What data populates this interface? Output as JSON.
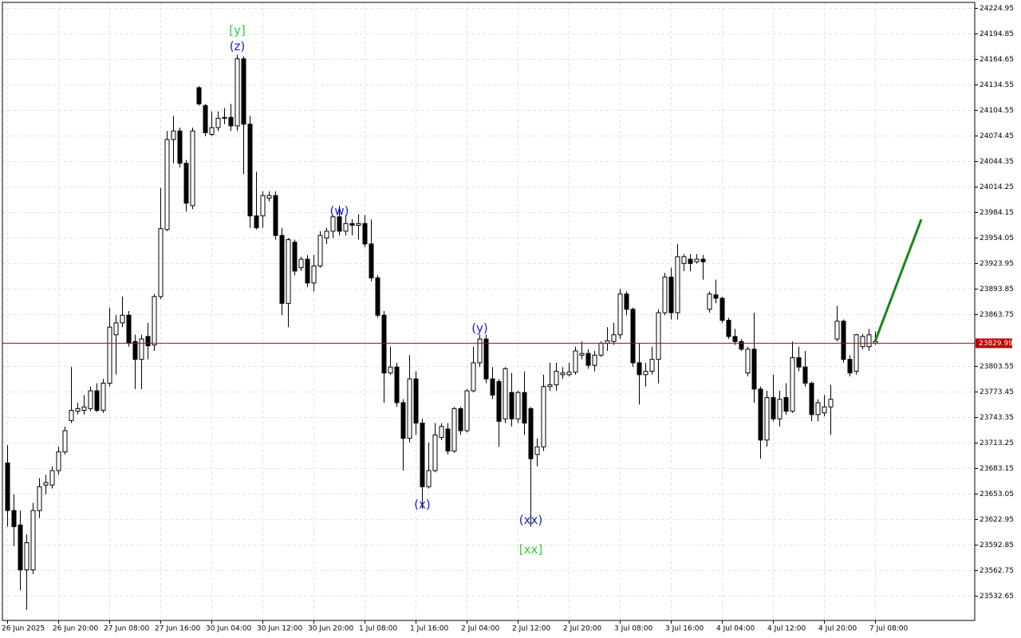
{
  "chart_data": {
    "type": "candlestick",
    "categories": [
      "26 Jun 2025",
      null,
      null,
      null,
      null,
      null,
      null,
      null,
      "26 Jun 20:00",
      null,
      null,
      null,
      null,
      null,
      null,
      null,
      "27 Jun 08:00",
      null,
      null,
      null,
      null,
      null,
      null,
      null,
      "27 Jun 16:00",
      null,
      null,
      null,
      null,
      null,
      null,
      null,
      "30 Jun 04:00",
      null,
      null,
      null,
      null,
      null,
      null,
      null,
      "30 Jun 12:00",
      null,
      null,
      null,
      null,
      null,
      null,
      null,
      "30 Jun 20:00",
      null,
      null,
      null,
      null,
      null,
      null,
      null,
      "1 Jul 08:00",
      null,
      null,
      null,
      null,
      null,
      null,
      null,
      "1 Jul 16:00",
      null,
      null,
      null,
      null,
      null,
      null,
      null,
      "2 Jul 04:00",
      null,
      null,
      null,
      null,
      null,
      null,
      null,
      "2 Jul 12:00",
      null,
      null,
      null,
      null,
      null,
      null,
      null,
      "2 Jul 20:00",
      null,
      null,
      null,
      null,
      null,
      null,
      null,
      "3 Jul 08:00",
      null,
      null,
      null,
      null,
      null,
      null,
      null,
      "3 Jul 16:00",
      null,
      null,
      null,
      null,
      null,
      null,
      null,
      "4 Jul 04:00",
      null,
      null,
      null,
      null,
      null,
      null,
      null,
      "4 Jul 12:00",
      null,
      null,
      null,
      null,
      null,
      null,
      null,
      "4 Jul 20:00",
      null,
      null,
      null,
      null,
      null,
      null,
      null,
      "7 Jul 08:00"
    ],
    "open": [
      23689,
      23633,
      23616,
      23563,
      23563,
      23633,
      23663,
      23663,
      23680,
      23702,
      23739,
      23750,
      23751,
      23753,
      23774,
      23751,
      23783,
      23840,
      23854,
      23863,
      23832,
      23811,
      23838,
      23828,
      23885,
      23964,
      24070,
      24080,
      24042,
      23992,
      24131,
      24110,
      24076,
      24084,
      24095,
      24096,
      24086,
      24165,
      24088,
      23980,
      23980,
      24001,
      24004,
      23957,
      23877,
      23949,
      23919,
      23929,
      23901,
      23921,
      23954,
      23962,
      23979,
      23962,
      23971,
      23969,
      23971,
      23947,
      23907,
      23863,
      23795,
      23802,
      23760,
      23718,
      23788,
      23736,
      23661,
      23680,
      23719,
      23729,
      23703,
      23753,
      23727,
      23774,
      23807,
      23835,
      23788,
      23785,
      23741,
      23772,
      23741,
      23772,
      23753,
      23699,
      23708,
      23779,
      23781,
      23793,
      23793,
      23796,
      23816,
      23818,
      23804,
      23816,
      23830,
      23832,
      23840,
      23888,
      23870,
      23807,
      23793,
      23797,
      23811,
      23866,
      23908,
      23866,
      23924,
      23929,
      23926,
      23929,
      23870,
      23887,
      23883,
      23857,
      23838,
      23832,
      23795,
      23823,
      23776,
      23716,
      23766,
      23741,
      23766,
      23750,
      23813,
      23802,
      23783,
      23746,
      23748,
      23755,
      23835,
      23856,
      23811,
      23797,
      23826,
      23826,
      23830
    ],
    "high": [
      23710,
      23652,
      23633,
      23605,
      23642,
      23671,
      23675,
      23685,
      23708,
      23732,
      23802,
      23760,
      23769,
      23779,
      23783,
      23788,
      23872,
      23863,
      23885,
      23868,
      23840,
      23840,
      23854,
      23888,
      24013,
      24080,
      24098,
      24084,
      24046,
      24084,
      24133,
      24112,
      24103,
      24103,
      24107,
      24112,
      24170,
      24168,
      24098,
      24032,
      24009,
      24009,
      24009,
      23966,
      23954,
      23952,
      23932,
      23934,
      23934,
      23962,
      23966,
      23981,
      23992,
      23981,
      23976,
      23982,
      23981,
      23976,
      23910,
      23868,
      23826,
      23807,
      23764,
      23816,
      23797,
      23741,
      23713,
      23736,
      23736,
      23736,
      23755,
      23755,
      23776,
      23826,
      23840,
      23840,
      23802,
      23788,
      23802,
      23795,
      23774,
      23797,
      23755,
      23718,
      23793,
      23807,
      23807,
      23802,
      23807,
      23826,
      23832,
      23823,
      23821,
      23832,
      23849,
      23854,
      23894,
      23891,
      23872,
      23830,
      23807,
      23826,
      23870,
      23913,
      23919,
      23947,
      23935,
      23935,
      23935,
      23934,
      23891,
      23905,
      23885,
      23860,
      23847,
      23835,
      23826,
      23866,
      23779,
      23774,
      23793,
      23774,
      23783,
      23832,
      23826,
      23821,
      23785,
      23764,
      23769,
      23781,
      23874,
      23858,
      23816,
      23841,
      23841,
      23847,
      23844
    ],
    "low": [
      23614,
      23591,
      23539,
      23516,
      23558,
      23624,
      23652,
      23659,
      23675,
      23699,
      23736,
      23746,
      23746,
      23750,
      23749,
      23748,
      23779,
      23793,
      23849,
      23826,
      23776,
      23776,
      23811,
      23821,
      23882,
      23962,
      24042,
      24037,
      23985,
      23988,
      24110,
      24074,
      24074,
      24080,
      24088,
      24080,
      24080,
      24029,
      23966,
      23964,
      23966,
      23997,
      23952,
      23863,
      23849,
      23910,
      23915,
      23896,
      23891,
      23919,
      23947,
      23954,
      23957,
      23957,
      23957,
      23952,
      23943,
      23903,
      23860,
      23760,
      23793,
      23755,
      23680,
      23713,
      23722,
      23635,
      23659,
      23678,
      23716,
      23699,
      23701,
      23722,
      23725,
      23772,
      23802,
      23783,
      23764,
      23708,
      23736,
      23732,
      23736,
      23722,
      23614,
      23685,
      23703,
      23774,
      23774,
      23788,
      23791,
      23793,
      23811,
      23800,
      23797,
      23814,
      23821,
      23828,
      23835,
      23863,
      23802,
      23758,
      23779,
      23793,
      23783,
      23863,
      23858,
      23858,
      23915,
      23915,
      23924,
      23905,
      23866,
      23877,
      23854,
      23835,
      23828,
      23821,
      23791,
      23760,
      23694,
      23708,
      23738,
      23732,
      23746,
      23748,
      23797,
      23779,
      23738,
      23738,
      23744,
      23722,
      23832,
      23807,
      23791,
      23793,
      23823,
      23821,
      23828
    ],
    "close": [
      23633,
      23614,
      23563,
      23595,
      23633,
      23661,
      23666,
      23680,
      23702,
      23727,
      23751,
      23753,
      23755,
      23774,
      23751,
      23783,
      23849,
      23854,
      23863,
      23830,
      23811,
      23835,
      23827,
      23885,
      23965,
      24070,
      24080,
      24042,
      23995,
      24080,
      24112,
      24078,
      24084,
      24095,
      24096,
      24086,
      24165,
      24088,
      23980,
      23966,
      24004,
      24004,
      23957,
      23877,
      23952,
      23915,
      23929,
      23901,
      23921,
      23957,
      23962,
      23979,
      23962,
      23971,
      23969,
      23971,
      23947,
      23907,
      23863,
      23795,
      23802,
      23760,
      23718,
      23788,
      23736,
      23661,
      23680,
      23722,
      23732,
      23703,
      23753,
      23727,
      23774,
      23807,
      23835,
      23788,
      23769,
      23738,
      23800,
      23741,
      23772,
      23736,
      23694,
      23708,
      23779,
      23781,
      23797,
      23795,
      23796,
      23821,
      23818,
      23804,
      23816,
      23830,
      23833,
      23840,
      23888,
      23870,
      23807,
      23793,
      23797,
      23811,
      23866,
      23908,
      23866,
      23932,
      23932,
      23924,
      23929,
      23926,
      23888,
      23883,
      23857,
      23838,
      23832,
      23823,
      23823,
      23776,
      23716,
      23766,
      23741,
      23764,
      23750,
      23813,
      23802,
      23783,
      23746,
      23760,
      23755,
      23764,
      23856,
      23811,
      23795,
      23840,
      23838,
      23840,
      23832
    ],
    "ylim": [
      23503.5,
      24231.5
    ],
    "yticks": [
      24224.95,
      24194.85,
      24164.65,
      24134.55,
      24104.55,
      24074.45,
      24044.35,
      24014.25,
      23984.15,
      23954.05,
      23923.95,
      23893.85,
      23863.75,
      23803.55,
      23773.45,
      23743.35,
      23713.25,
      23683.15,
      23653.05,
      23622.95,
      23592.85,
      23562.75,
      23532.65
    ],
    "grid": true,
    "up_color": "#ffffff",
    "down_color": "#000000",
    "last_price": {
      "value": 23829.99,
      "color": "#c00000"
    },
    "forecast": {
      "value": 23976,
      "color": "#138a13"
    },
    "annotations": [
      {
        "text": "(z)",
        "at": 36,
        "position": "above",
        "color": "#1c1cd0"
      },
      {
        "text": "[y]",
        "at": 36,
        "position": "above",
        "color": "#3cc83c"
      },
      {
        "text": "(w)",
        "at": 52,
        "position": "above",
        "color": "#1c1cd0"
      },
      {
        "text": "(x)",
        "at": 65,
        "position": "below",
        "color": "#1c1cd0"
      },
      {
        "text": "(y)",
        "at": 74,
        "position": "above",
        "color": "#1c1cd0"
      },
      {
        "text": "(xx)",
        "at": 82,
        "position": "below",
        "color": "#1c1cd0"
      },
      {
        "text": "[xx]",
        "at": 82,
        "position": "below",
        "color": "#3cc83c"
      }
    ]
  }
}
